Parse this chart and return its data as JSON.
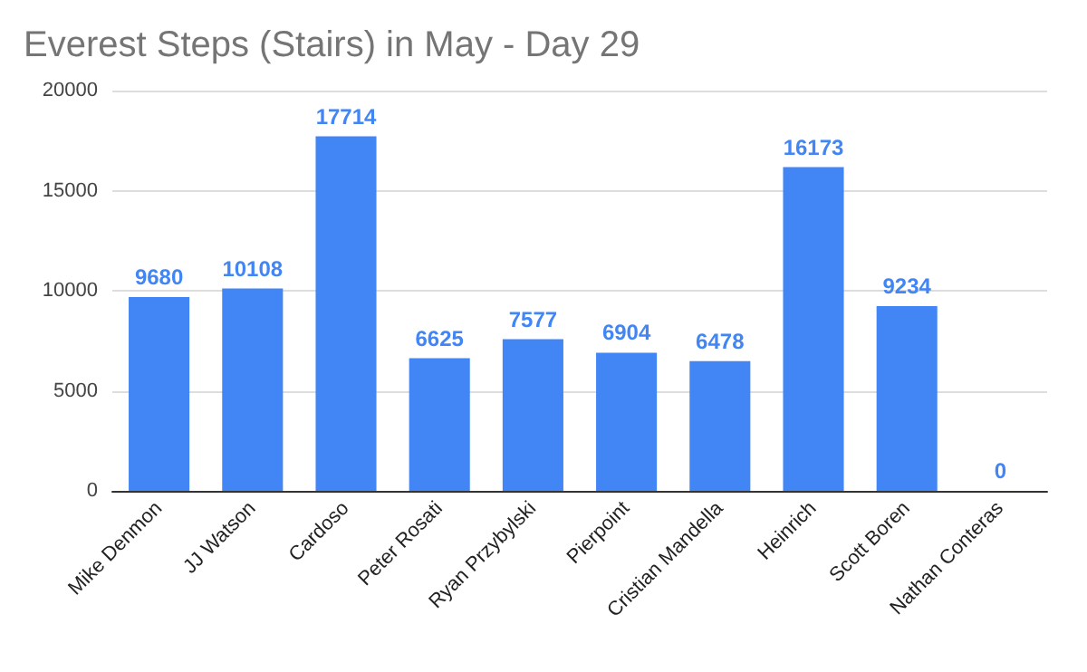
{
  "chart_data": {
    "type": "bar",
    "title": "Everest Steps (Stairs) in May - Day 29",
    "categories": [
      "Mike Denmon",
      "JJ Watson",
      "Cardoso",
      "Peter Rosati",
      "Ryan Przybylski",
      "Pierpoint",
      "Cristian Mandella",
      "Heinrich",
      "Scott Boren",
      "Nathan Conteras"
    ],
    "values": [
      9680,
      10108,
      17714,
      6625,
      7577,
      6904,
      6478,
      16173,
      9234,
      0
    ],
    "color": "#4285f4",
    "ylim": [
      0,
      20000
    ],
    "yticks": [
      0,
      5000,
      10000,
      15000,
      20000
    ],
    "grid": "y",
    "data_labels": true
  }
}
